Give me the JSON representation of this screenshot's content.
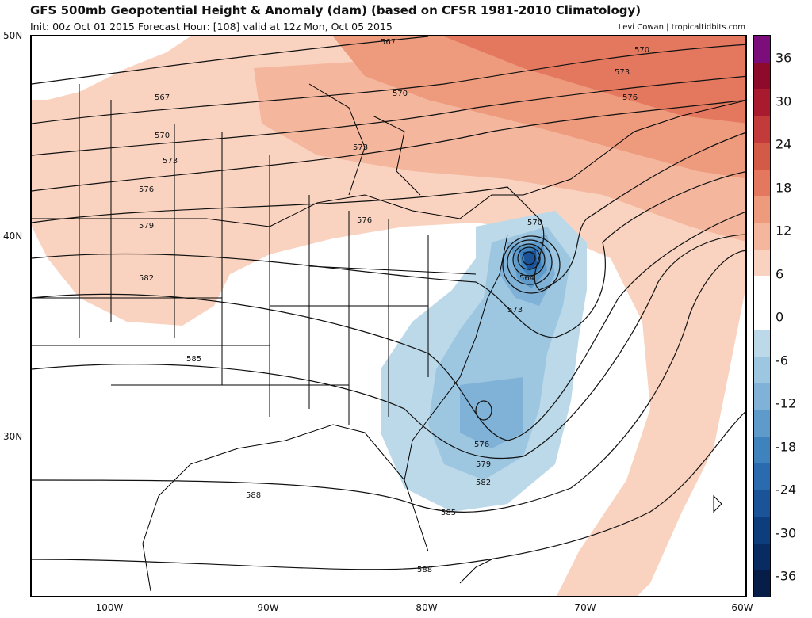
{
  "header": {
    "title": "GFS 500mb Geopotential Height & Anomaly (dam) (based on CFSR 1981-2010 Climatology)",
    "subtitle": "Init: 00z Oct 01 2015   Forecast Hour: [108]   valid at 12z Mon, Oct 05 2015",
    "credit": "Levi Cowan | tropicaltidbits.com"
  },
  "axes": {
    "lat_labels": [
      "50N",
      "40N",
      "30N"
    ],
    "lon_labels": [
      "100W",
      "90W",
      "80W",
      "70W",
      "60W"
    ]
  },
  "colorbar": {
    "labels": [
      "36",
      "30",
      "24",
      "18",
      "12",
      "6",
      "0",
      "-6",
      "-12",
      "-18",
      "-24",
      "-30",
      "-36"
    ],
    "colors": [
      "#7b0e7a",
      "#8e0a2a",
      "#a81a2e",
      "#c23a3a",
      "#d45a48",
      "#e3785f",
      "#ed9a7d",
      "#f4b79e",
      "#fad3c0",
      "#ffffff",
      "#ffffff",
      "#bcd9ea",
      "#9dc6e0",
      "#7fb2d6",
      "#5e9bcb",
      "#3f83be",
      "#2a6aaf",
      "#1a5398",
      "#0e3d7e",
      "#082b62",
      "#061d48"
    ]
  },
  "fields": {
    "units": "dam",
    "contour_labels": [
      "567",
      "570",
      "573",
      "576",
      "579",
      "582",
      "585",
      "588",
      "564"
    ]
  },
  "colors": {
    "land_border": "#000000",
    "positive_anomaly": "#f4b79e",
    "negative_anomaly": "#9dc6e0"
  }
}
